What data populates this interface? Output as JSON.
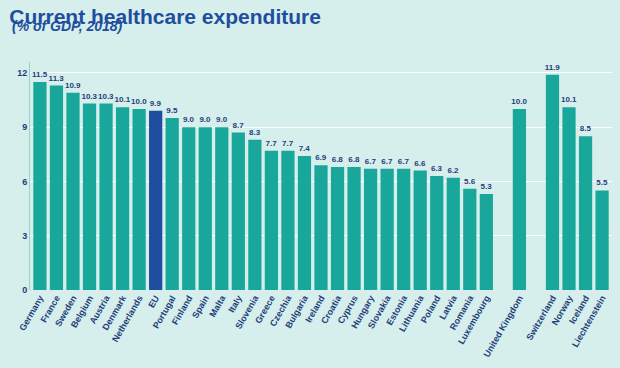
{
  "chart_data": {
    "type": "bar",
    "title": "Current healthcare expenditure",
    "subtitle": "(% of GDP, 2018)",
    "categories": [
      "Germany",
      "France",
      "Sweden",
      "Belgium",
      "Austria",
      "Denmark",
      "Netherlands",
      "EU",
      "Portugal",
      "Finland",
      "Spain",
      "Malta",
      "Italy",
      "Slovenia",
      "Greece",
      "Czechia",
      "Bulgaria",
      "Ireland",
      "Croatia",
      "Cyprus",
      "Hungary",
      "Slovakia",
      "Estonia",
      "Lithuania",
      "Poland",
      "Latvia",
      "Romania",
      "Luxembourg",
      null,
      "United Kingdom",
      null,
      "Switzerland",
      "Norway",
      "Iceland",
      "Liechtenstein"
    ],
    "values": [
      11.5,
      11.3,
      10.9,
      10.3,
      10.3,
      10.1,
      10.0,
      9.9,
      9.5,
      9.0,
      9.0,
      9.0,
      8.7,
      8.3,
      7.7,
      7.7,
      7.4,
      6.9,
      6.8,
      6.8,
      6.7,
      6.7,
      6.7,
      6.6,
      6.3,
      6.2,
      5.6,
      5.3,
      null,
      10.0,
      null,
      11.9,
      10.1,
      8.5,
      5.5
    ],
    "value_labels": [
      "11.5",
      "11.3",
      "10.9",
      "10.3",
      "10.3",
      "10.1",
      "10.0",
      "9.9",
      "9.5",
      "9.0",
      "9.0",
      "9.0",
      "8.7",
      "8.3",
      "7.7",
      "7.7",
      "7.4",
      "6.9",
      "6.8",
      "6.8",
      "6.7",
      "6.7",
      "6.7",
      "6.6",
      "6.3",
      "6.2",
      "5.6",
      "5.3",
      null,
      "10.0",
      null,
      "11.9",
      "10.1",
      "8.5",
      "5.5"
    ],
    "colors": [
      "#1aa79b",
      "#1aa79b",
      "#1aa79b",
      "#1aa79b",
      "#1aa79b",
      "#1aa79b",
      "#1aa79b",
      "#1f4e9e",
      "#1aa79b",
      "#1aa79b",
      "#1aa79b",
      "#1aa79b",
      "#1aa79b",
      "#1aa79b",
      "#1aa79b",
      "#1aa79b",
      "#1aa79b",
      "#1aa79b",
      "#1aa79b",
      "#1aa79b",
      "#1aa79b",
      "#1aa79b",
      "#1aa79b",
      "#1aa79b",
      "#1aa79b",
      "#1aa79b",
      "#1aa79b",
      "#1aa79b",
      null,
      "#1aa79b",
      null,
      "#1aa79b",
      "#1aa79b",
      "#1aa79b",
      "#1aa79b"
    ],
    "ylim": [
      0,
      12.6
    ],
    "yticks": [
      0,
      3,
      6,
      9,
      12
    ],
    "grid": true,
    "data_labels": true
  }
}
